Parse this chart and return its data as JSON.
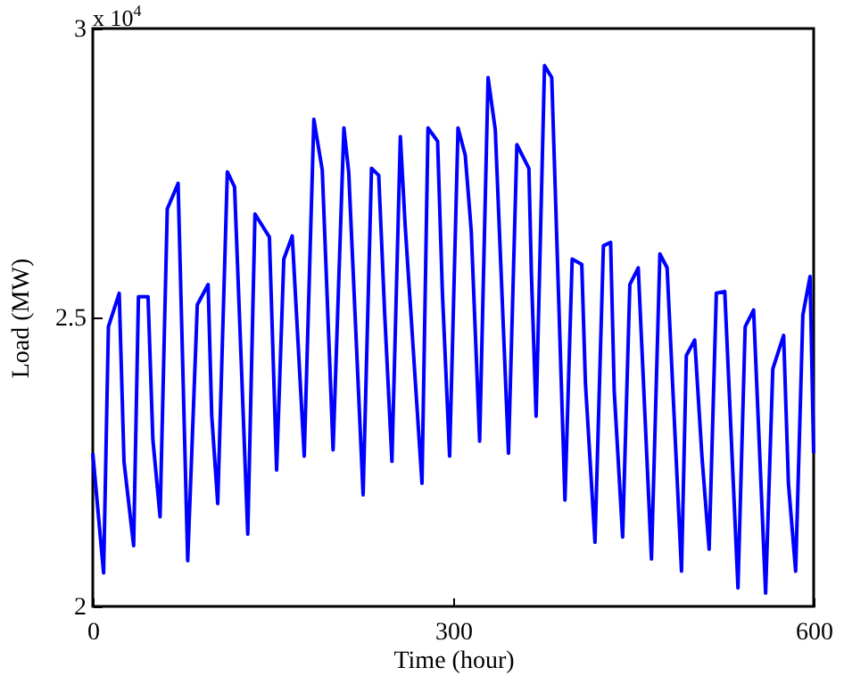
{
  "chart_data": {
    "type": "line",
    "xlabel": "Time (hour)",
    "ylabel": "Load (MW)",
    "annotations": [
      "x 10$^{4}$"
    ],
    "x": [
      0,
      9,
      13,
      22,
      26,
      34,
      38,
      46,
      50,
      56,
      62,
      71,
      79,
      87,
      96,
      99,
      104,
      112,
      118,
      129,
      135,
      147,
      153,
      159,
      166,
      176,
      184,
      191,
      200,
      209,
      213,
      225,
      232,
      238,
      243,
      249,
      256,
      260,
      274,
      279,
      287,
      291,
      297,
      304,
      310,
      315,
      322,
      329,
      335,
      346,
      353,
      363,
      365,
      369,
      376,
      382,
      393,
      399,
      407,
      410,
      418,
      425,
      431,
      434,
      441,
      447,
      454,
      465,
      472,
      478,
      490,
      494,
      501,
      507,
      513,
      519,
      526,
      537,
      543,
      550,
      560,
      566,
      575,
      579,
      585,
      591,
      597,
      600
    ],
    "series": [
      {
        "color": "#0000ff",
        "values": [
          2.265,
          2.058,
          2.484,
          2.542,
          2.25,
          2.105,
          2.536,
          2.536,
          2.289,
          2.155,
          2.688,
          2.732,
          2.079,
          2.522,
          2.557,
          2.33,
          2.178,
          2.752,
          2.726,
          2.125,
          2.679,
          2.639,
          2.236,
          2.601,
          2.641,
          2.26,
          2.843,
          2.755,
          2.271,
          2.828,
          2.752,
          2.193,
          2.758,
          2.746,
          2.504,
          2.251,
          2.813,
          2.659,
          2.213,
          2.828,
          2.805,
          2.542,
          2.26,
          2.828,
          2.781,
          2.65,
          2.286,
          2.915,
          2.825,
          2.265,
          2.799,
          2.758,
          2.58,
          2.329,
          2.936,
          2.915,
          2.184,
          2.601,
          2.592,
          2.388,
          2.111,
          2.624,
          2.63,
          2.373,
          2.12,
          2.557,
          2.586,
          2.082,
          2.61,
          2.586,
          2.061,
          2.434,
          2.461,
          2.26,
          2.099,
          2.542,
          2.545,
          2.032,
          2.484,
          2.513,
          2.023,
          2.411,
          2.469,
          2.213,
          2.061,
          2.504,
          2.571,
          2.265
        ]
      }
    ],
    "xlim": [
      0,
      600
    ],
    "xticks": [
      0,
      300,
      600
    ],
    "ylim": [
      2,
      3
    ],
    "yticks": [
      2,
      2.5,
      3
    ],
    "marker": "none",
    "line_style": "solid"
  }
}
